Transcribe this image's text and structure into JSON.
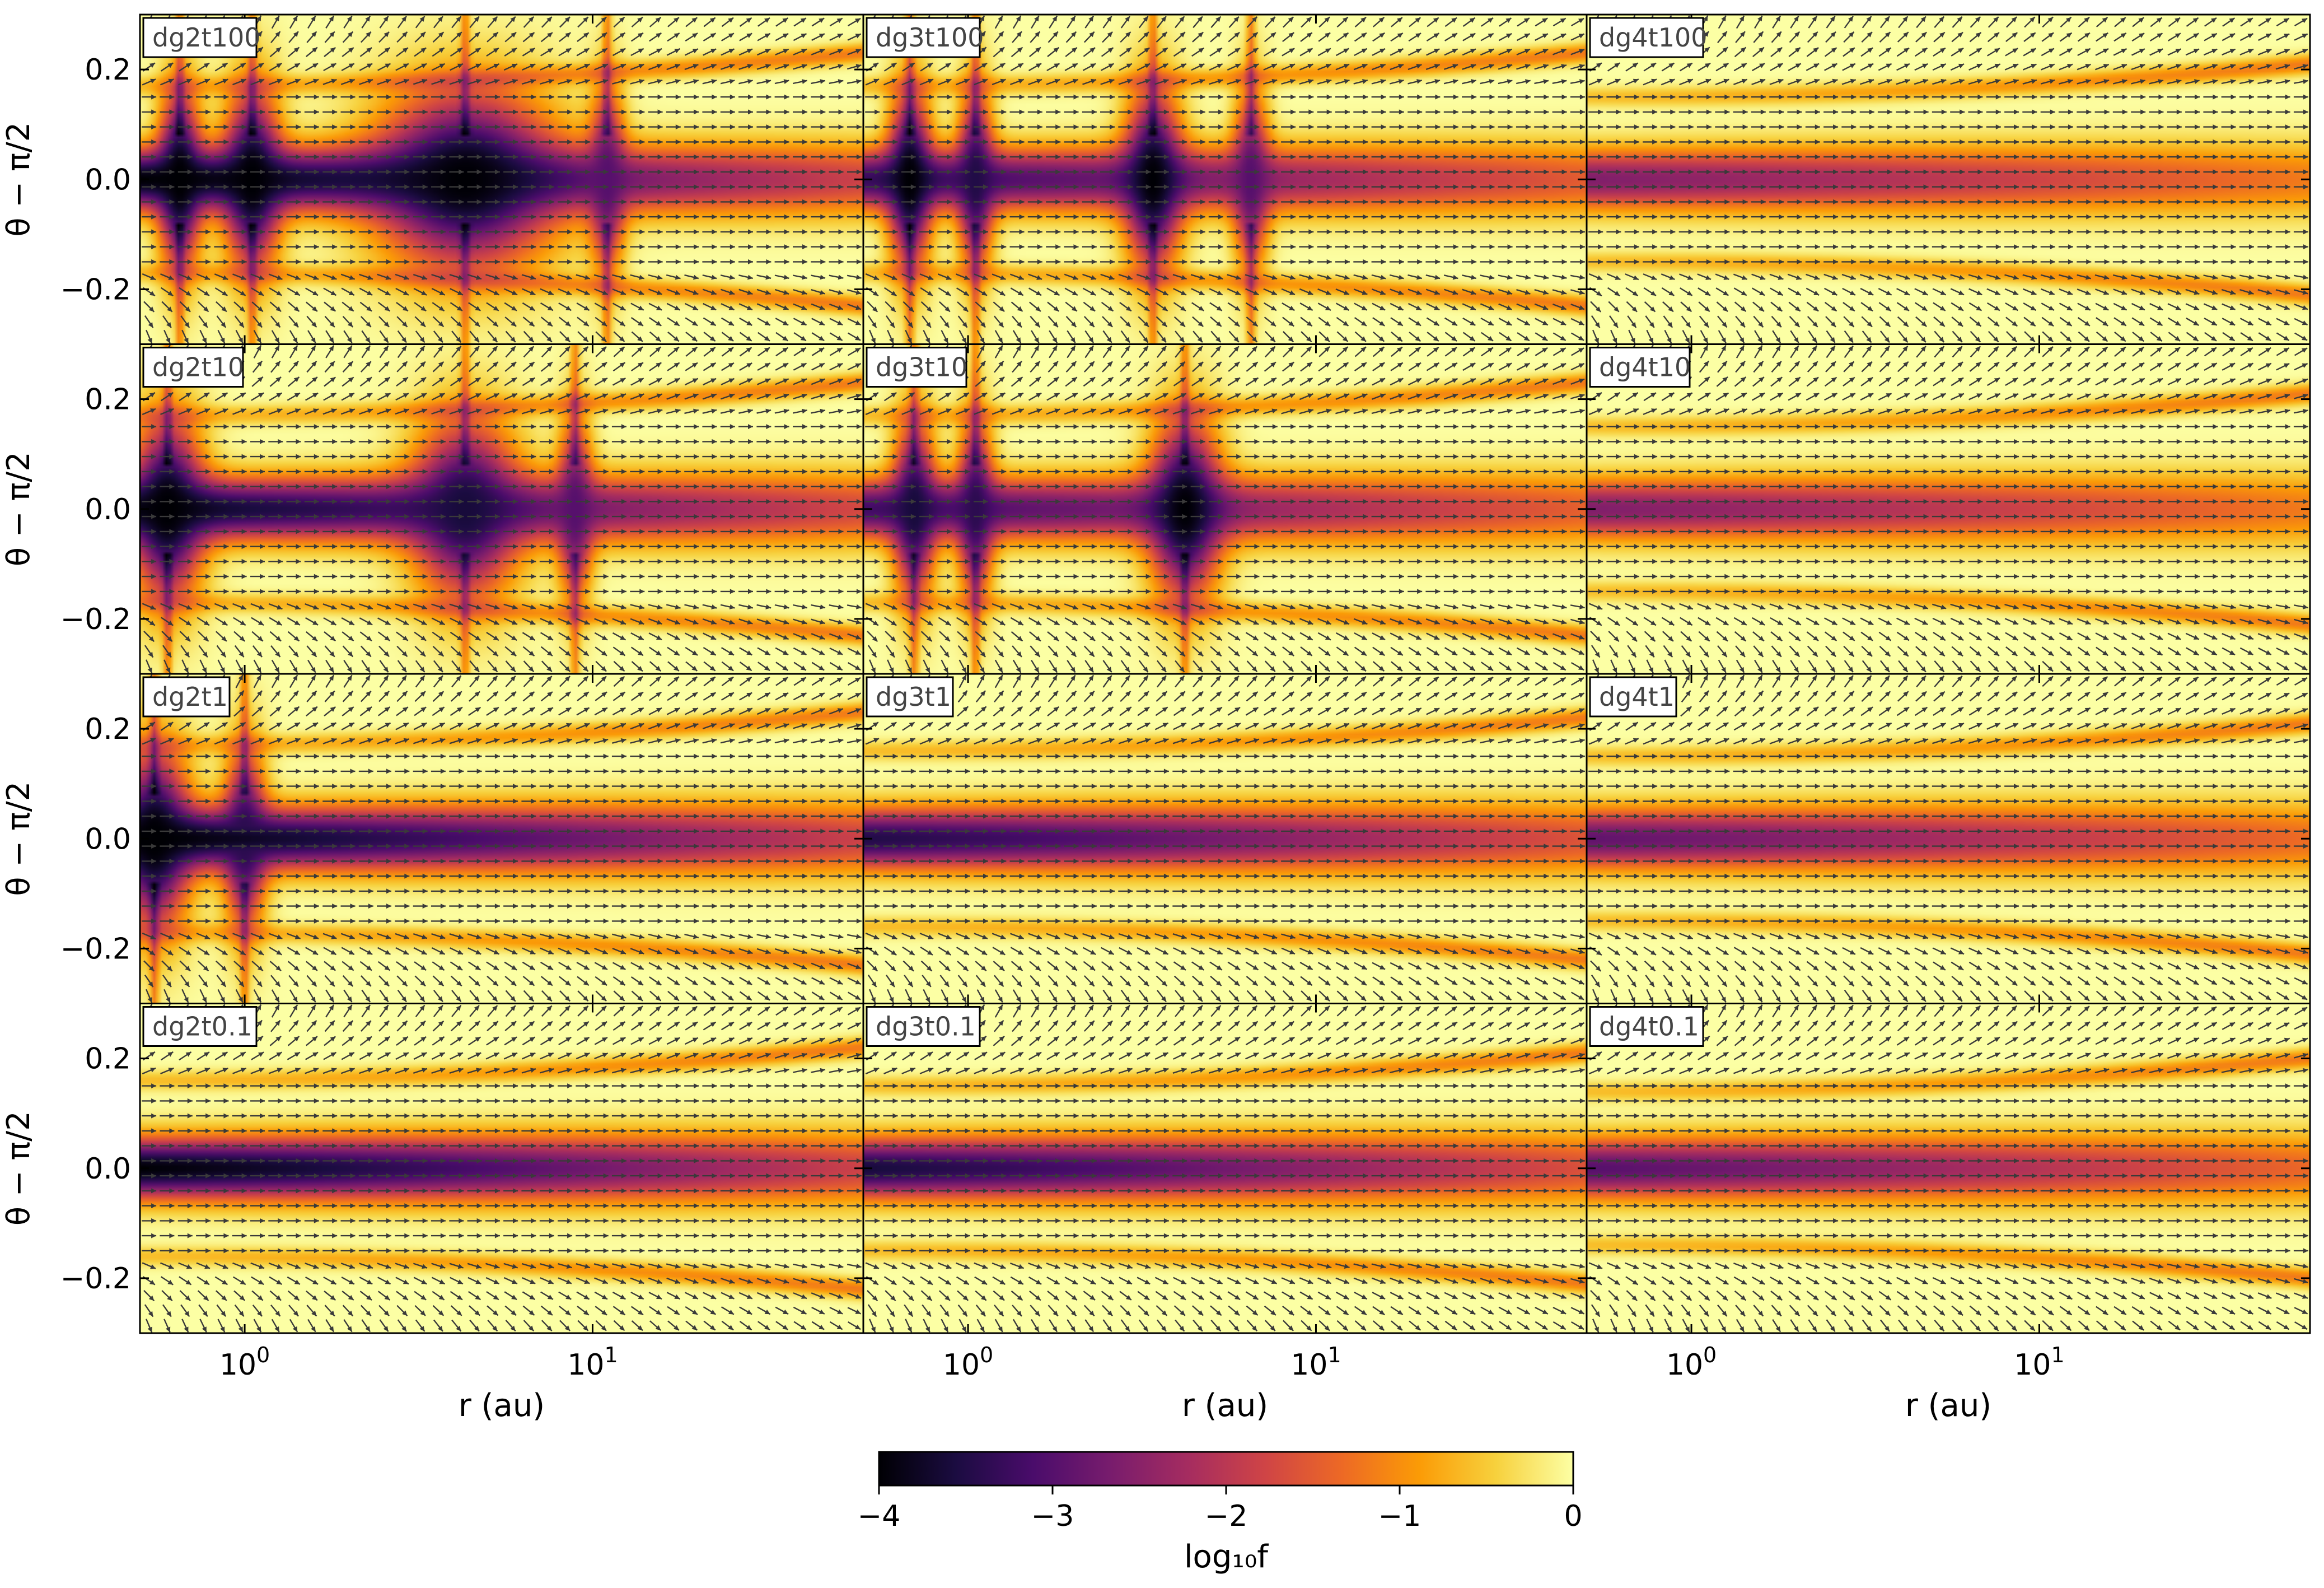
{
  "chart_data": {
    "type": "heatmap",
    "colormap": "inferno",
    "grid": false,
    "xscale": "log",
    "xlabel": "r (au)",
    "ylabel": "θ − π/2",
    "xlim": [
      0.5,
      60
    ],
    "ylim": [
      -0.3,
      0.3
    ],
    "xticks": [
      {
        "value": 1,
        "base": "10",
        "exp": "0"
      },
      {
        "value": 10,
        "base": "10",
        "exp": "1"
      }
    ],
    "yticks": [
      {
        "value": 0.2,
        "label": "0.2"
      },
      {
        "value": 0.0,
        "label": "0.0"
      },
      {
        "value": -0.2,
        "label": "−0.2"
      }
    ],
    "colorbar": {
      "label": "log₁₀f",
      "range": [
        -4,
        0
      ],
      "ticks": [
        {
          "value": -4,
          "label": "−4"
        },
        {
          "value": -3,
          "label": "−3"
        },
        {
          "value": -2,
          "label": "−2"
        },
        {
          "value": -1,
          "label": "−1"
        },
        {
          "value": 0,
          "label": "0"
        }
      ],
      "stops": [
        "#000004",
        "#1b0c41",
        "#4a0c6b",
        "#781c6d",
        "#a52c60",
        "#cf4446",
        "#ed6925",
        "#fb9b06",
        "#f7d13d",
        "#fcffa4"
      ]
    },
    "panels": [
      {
        "label": "dg2t100",
        "row": 0,
        "col": 0,
        "core": -4.0,
        "spread": 6.0,
        "bands": 0.17,
        "features": [
          {
            "r": 0.65,
            "depth": -4,
            "width": 0.06
          },
          {
            "r": 1.05,
            "depth": -4,
            "width": 0.08
          },
          {
            "r": 4.3,
            "depth": -4,
            "width": 0.25
          },
          {
            "r": 11,
            "depth": -3,
            "width": 0.05
          }
        ]
      },
      {
        "label": "dg3t100",
        "row": 0,
        "col": 1,
        "core": -3.3,
        "spread": 4.5,
        "bands": 0.17,
        "features": [
          {
            "r": 0.68,
            "depth": -4,
            "width": 0.06
          },
          {
            "r": 1.05,
            "depth": -3.5,
            "width": 0.05
          },
          {
            "r": 3.4,
            "depth": -4,
            "width": 0.08
          },
          {
            "r": 6.5,
            "depth": -3,
            "width": 0.05
          }
        ]
      },
      {
        "label": "dg4t100",
        "row": 0,
        "col": 2,
        "core": -2.6,
        "spread": 3.5,
        "bands": 0.15,
        "features": []
      },
      {
        "label": "dg2t10",
        "row": 1,
        "col": 0,
        "core": -3.8,
        "spread": 6.5,
        "bands": 0.17,
        "features": [
          {
            "r": 0.6,
            "depth": -4,
            "width": 0.1
          },
          {
            "r": 4.3,
            "depth": -3.6,
            "width": 0.15
          },
          {
            "r": 8.9,
            "depth": -3.0,
            "width": 0.05
          }
        ]
      },
      {
        "label": "dg3t10",
        "row": 1,
        "col": 1,
        "core": -3.2,
        "spread": 4.5,
        "bands": 0.17,
        "features": [
          {
            "r": 0.7,
            "depth": -3.6,
            "width": 0.06
          },
          {
            "r": 1.05,
            "depth": -3.4,
            "width": 0.05
          },
          {
            "r": 4.2,
            "depth": -4,
            "width": 0.1
          }
        ]
      },
      {
        "label": "dg4t10",
        "row": 1,
        "col": 2,
        "core": -2.6,
        "spread": 3.5,
        "bands": 0.15,
        "features": []
      },
      {
        "label": "dg2t1",
        "row": 2,
        "col": 0,
        "core": -4.0,
        "spread": 5.5,
        "bands": 0.17,
        "features": [
          {
            "r": 0.55,
            "depth": -4,
            "width": 0.1
          },
          {
            "r": 1.0,
            "depth": -3.4,
            "width": 0.06
          }
        ]
      },
      {
        "label": "dg3t1",
        "row": 2,
        "col": 1,
        "core": -3.5,
        "spread": 3.8,
        "bands": 0.16,
        "features": []
      },
      {
        "label": "dg4t1",
        "row": 2,
        "col": 2,
        "core": -2.9,
        "spread": 3.6,
        "bands": 0.15,
        "features": []
      },
      {
        "label": "dg2t0.1",
        "row": 3,
        "col": 0,
        "core": -4.0,
        "spread": 4.8,
        "bands": 0.16,
        "features": []
      },
      {
        "label": "dg3t0.1",
        "row": 3,
        "col": 1,
        "core": -3.6,
        "spread": 3.8,
        "bands": 0.15,
        "features": []
      },
      {
        "label": "dg4t0.1",
        "row": 3,
        "col": 2,
        "core": -3.0,
        "spread": 3.2,
        "bands": 0.14,
        "features": []
      }
    ]
  }
}
